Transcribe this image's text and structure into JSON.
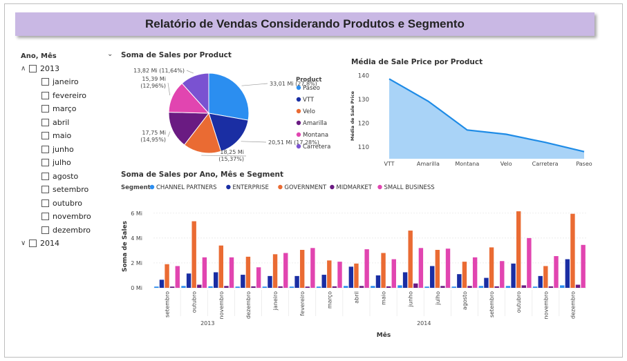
{
  "page": {
    "title": "Relatório de Vendas Considerando Produtos e Segmento"
  },
  "slicer": {
    "title": "Ano, Mês",
    "years": [
      {
        "label": "2013",
        "expanded": true,
        "months": [
          "janeiro",
          "fevereiro",
          "março",
          "abril",
          "maio",
          "junho",
          "julho",
          "agosto",
          "setembro",
          "outubro",
          "novembro",
          "dezembro"
        ]
      },
      {
        "label": "2014",
        "expanded": false,
        "months": []
      }
    ]
  },
  "colors": {
    "Paseo": "#2b8ef0",
    "VTT": "#1a2ea3",
    "Velo": "#ea6b33",
    "Amarilla": "#6a1b82",
    "Montana": "#e145b0",
    "Carretera": "#7a52d1",
    "area_fill": "#a9d3f7",
    "area_line": "#1e8be6",
    "CHANNEL PARTNERS": "#2b8ef0",
    "ENTERPRISE": "#1a2ea3",
    "GOVERNMENT": "#ea6b33",
    "MIDMARKET": "#6a1b82",
    "SMALL BUSINESS": "#e145b0"
  },
  "chart_data": [
    {
      "type": "pie",
      "title": "Soma de Sales por Product",
      "legend_title": "Product",
      "legend_position": "right",
      "slices": [
        {
          "name": "Paseo",
          "value": 33.01,
          "label": "33,01 Mi (27,8%)"
        },
        {
          "name": "VTT",
          "value": 20.51,
          "label": "20,51 Mi (17,28%)"
        },
        {
          "name": "Velo",
          "value": 18.25,
          "label": "18,25 Mi (15,37%)"
        },
        {
          "name": "Amarilla",
          "value": 17.75,
          "label": "17,75 Mi (14,95%)"
        },
        {
          "name": "Montana",
          "value": 15.39,
          "label": "15,39 Mi (12,96%)"
        },
        {
          "name": "Carretera",
          "value": 13.82,
          "label": "13,82 Mi (11,64%)"
        }
      ]
    },
    {
      "type": "area",
      "title": "Média de Sale Price por Product",
      "xlabel": "",
      "ylabel": "Média de Sale Price",
      "categories": [
        "VTT",
        "Amarilla",
        "Montana",
        "Velo",
        "Carretera",
        "Paseo"
      ],
      "values": [
        138.6,
        129.2,
        117.1,
        115.3,
        111.9,
        108.0
      ],
      "yticks": [
        110,
        120,
        130,
        140
      ],
      "ylim": [
        105,
        141
      ]
    },
    {
      "type": "bar",
      "title": "Soma de Sales por Ano, Mês e Segment",
      "legend_title": "Segment",
      "legend_position": "top-left",
      "xlabel": "Mês",
      "ylabel": "Soma de Sales",
      "yticks": [
        "0 Mi",
        "2 Mi",
        "4 Mi",
        "6 Mi"
      ],
      "ytick_values": [
        0,
        2,
        4,
        6
      ],
      "ylim": [
        0,
        6.6
      ],
      "groups": [
        {
          "label": "2013",
          "start": 0,
          "end": 3
        },
        {
          "label": "2014",
          "start": 4,
          "end": 15
        }
      ],
      "categories": [
        "setembro",
        "outubro",
        "novembro",
        "dezembro",
        "janeiro",
        "fevereiro",
        "março",
        "abril",
        "maio",
        "junho",
        "julho",
        "agosto",
        "setembro",
        "outubro",
        "novembro",
        "dezembro"
      ],
      "series": [
        {
          "name": "CHANNEL PARTNERS",
          "values": [
            0.1,
            0.15,
            0.12,
            0.1,
            0.1,
            0.1,
            0.1,
            0.15,
            0.15,
            0.2,
            0.1,
            0.1,
            0.15,
            0.15,
            0.1,
            0.2
          ]
        },
        {
          "name": "ENTERPRISE",
          "values": [
            0.65,
            1.15,
            1.25,
            1.05,
            0.95,
            0.95,
            1.05,
            1.7,
            1.0,
            1.25,
            1.75,
            1.1,
            0.8,
            1.95,
            0.95,
            2.3
          ]
        },
        {
          "name": "GOVERNMENT",
          "values": [
            1.9,
            5.35,
            3.4,
            2.5,
            2.7,
            3.05,
            2.2,
            1.95,
            2.8,
            4.6,
            3.05,
            2.1,
            3.25,
            6.15,
            1.75,
            5.95
          ]
        },
        {
          "name": "MIDMARKET",
          "values": [
            0.1,
            0.25,
            0.15,
            0.12,
            0.12,
            0.1,
            0.12,
            0.15,
            0.12,
            0.35,
            0.15,
            0.15,
            0.12,
            0.2,
            0.12,
            0.25
          ]
        },
        {
          "name": "SMALL BUSINESS",
          "values": [
            1.75,
            2.45,
            2.45,
            1.65,
            2.8,
            3.2,
            2.1,
            3.1,
            2.3,
            3.2,
            3.15,
            2.45,
            2.15,
            4.0,
            2.55,
            3.45
          ]
        }
      ]
    }
  ]
}
